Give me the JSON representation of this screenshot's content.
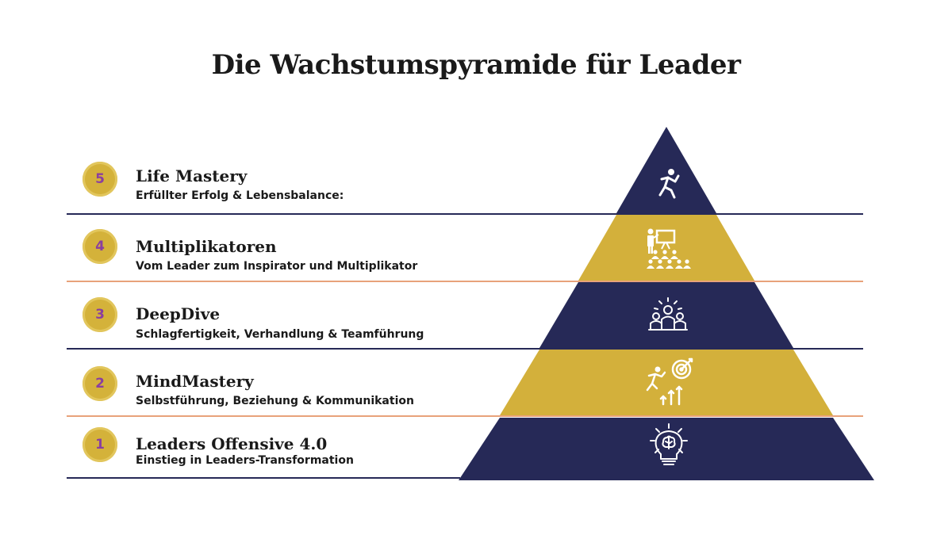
{
  "title": "Die Wachstumspyramide für Leader",
  "colors": {
    "navy": "#262957",
    "gold": "#d3b03b",
    "badge_number": "#8a3fa0",
    "divider_navy": "#262957",
    "divider_orange": "#e8a27a"
  },
  "levels": [
    {
      "number": "5",
      "title": "Life Mastery",
      "subtitle": "Erfüllter Erfolg & Lebensbalance:",
      "icon": "running-person-icon"
    },
    {
      "number": "4",
      "title": "Multiplikatoren",
      "subtitle": "Vom Leader zum Inspirator und Multiplikator",
      "icon": "presenter-audience-icon"
    },
    {
      "number": "3",
      "title": "DeepDive",
      "subtitle": "Schlagfertigkeit, Verhandlung & Teamführung",
      "icon": "team-idea-icon"
    },
    {
      "number": "2",
      "title": "MindMastery",
      "subtitle": "Selbstführung, Beziehung & Kommunikation",
      "icon": "target-achievement-icon"
    },
    {
      "number": "1",
      "title": "Leaders Offensive 4.0",
      "subtitle": "Einstieg in Leaders-Transformation",
      "icon": "brain-lightbulb-icon"
    }
  ]
}
